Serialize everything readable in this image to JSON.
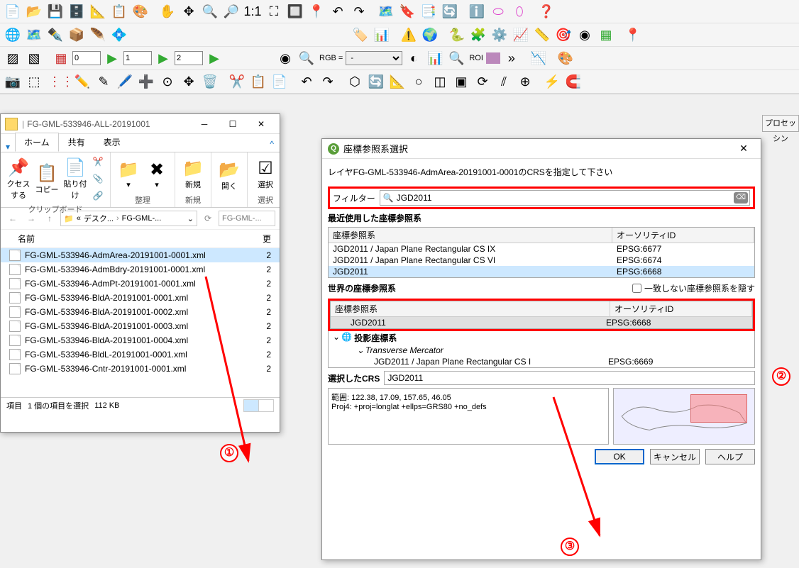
{
  "toolbar": {
    "row2_inputs": [
      {
        "val": "0"
      },
      {
        "val": "1"
      },
      {
        "val": "2"
      }
    ],
    "rgb_label": "RGB =",
    "roi_label": "ROI"
  },
  "explorer": {
    "title": "FG-GML-533946-ALL-20191001",
    "tabs": {
      "home": "ホーム",
      "share": "共有",
      "view": "表示"
    },
    "ribbon": {
      "clipboard": {
        "label": "クリップボード",
        "access": "クセス\nする",
        "copy": "コピー",
        "paste": "貼り付け"
      },
      "organize": {
        "label": "整理"
      },
      "new": {
        "label": "新規",
        "btn": "新規"
      },
      "open": {
        "btn": "開く"
      },
      "select": {
        "label": "選択",
        "btn": "選択"
      }
    },
    "address": {
      "seg1": "デスク...",
      "seg2": "FG-GML-..."
    },
    "search_placeholder": "FG-GML-...",
    "col_name": "名前",
    "files": [
      "FG-GML-533946-AdmArea-20191001-0001.xml",
      "FG-GML-533946-AdmBdry-20191001-0001.xml",
      "FG-GML-533946-AdmPt-20191001-0001.xml",
      "FG-GML-533946-BldA-20191001-0001.xml",
      "FG-GML-533946-BldA-20191001-0002.xml",
      "FG-GML-533946-BldA-20191001-0003.xml",
      "FG-GML-533946-BldA-20191001-0004.xml",
      "FG-GML-533946-BldL-20191001-0001.xml",
      "FG-GML-533946-Cntr-20191001-0001.xml"
    ],
    "selected_index": 0,
    "status": {
      "items": "項目",
      "selected": "1 個の項目を選択",
      "size": "112 KB"
    }
  },
  "dialog": {
    "title": "座標参照系選択",
    "message": "レイヤFG-GML-533946-AdmArea-20191001-0001のCRSを指定して下さい",
    "filter_label": "フィルター",
    "filter_value": "JGD2011",
    "recent_label": "最近使用した座標参照系",
    "col_crs": "座標参照系",
    "col_auth": "オーソリティID",
    "recent": [
      {
        "name": "JGD2011 / Japan Plane Rectangular CS IX",
        "auth": "EPSG:6677"
      },
      {
        "name": "JGD2011 / Japan Plane Rectangular CS VI",
        "auth": "EPSG:6674"
      },
      {
        "name": "JGD2011",
        "auth": "EPSG:6668"
      }
    ],
    "recent_sel": 2,
    "world_label": "世界の座標参照系",
    "hide_unmatched": "一致しない座標参照系を隠す",
    "world_tree": {
      "jgd": {
        "name": "JGD2011",
        "auth": "EPSG:6668"
      },
      "proj": "投影座標系",
      "tm": "Transverse Mercator",
      "cs1": {
        "name": "JGD2011 / Japan Plane Rectangular CS I",
        "auth": "EPSG:6669"
      }
    },
    "selected_label": "選択したCRS",
    "selected_value": "JGD2011",
    "detail": "範囲: 122.38, 17.09, 157.65, 46.05\nProj4: +proj=longlat +ellps=GRS80 +no_defs",
    "buttons": {
      "ok": "OK",
      "cancel": "キャンセル",
      "help": "ヘルプ"
    }
  },
  "annotations": {
    "a1": "①",
    "a2": "②",
    "a3": "③"
  },
  "right_panel": "プロセッシン"
}
